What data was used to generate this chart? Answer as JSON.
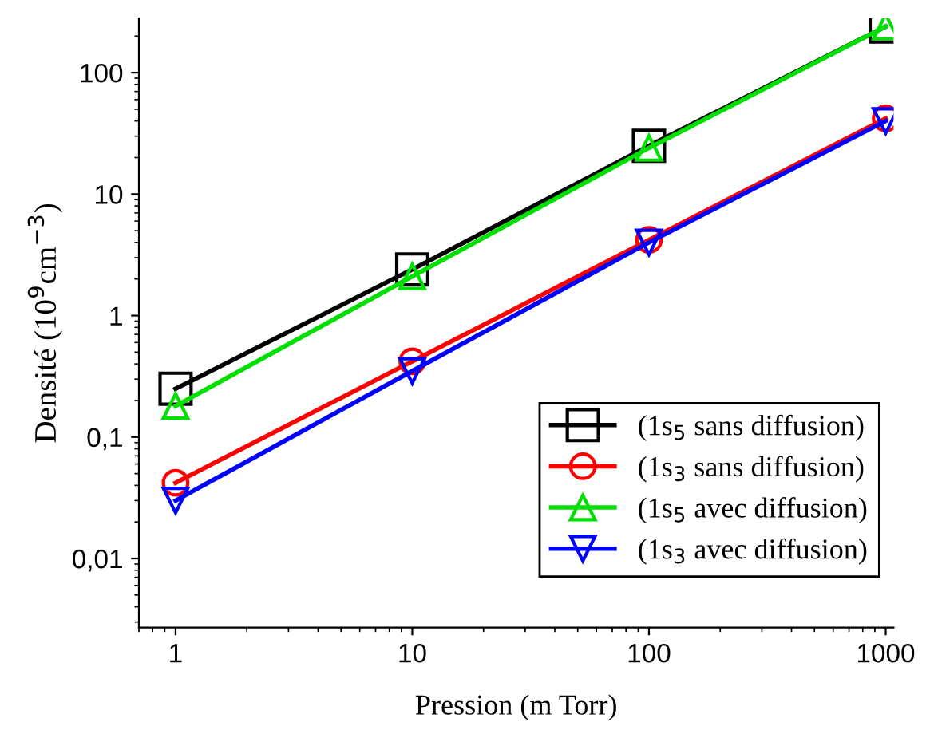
{
  "chart_data": {
    "type": "line",
    "xlabel": "Pression (m Torr)",
    "ylabel": "Densité (10$^{9}$cm$^{−3}$)",
    "x": [
      1,
      10,
      100,
      1000
    ],
    "log": "xy",
    "xlim": [
      0.7,
      1080
    ],
    "ylim": [
      0.0027,
      280
    ],
    "xticks": [
      1,
      10,
      100,
      1000
    ],
    "yticks": [
      {
        "value": 0.01,
        "label": "0,01"
      },
      {
        "value": 0.1,
        "label": "0,1"
      },
      1,
      10,
      100
    ],
    "grid": false,
    "legend": "bottom right",
    "line_style": "solid",
    "series": [
      {
        "name": "(1s$_{5}$ sans diffusion)",
        "color": "#000000",
        "marker": "square",
        "values": [
          0.25,
          2.4,
          25,
          240
        ]
      },
      {
        "name": "(1s$_{3}$ sans diffusion)",
        "color": "#ff0000",
        "marker": "circle",
        "values": [
          0.042,
          0.42,
          4.2,
          42
        ]
      },
      {
        "name": "(1s$_{5}$ avec diffusion)",
        "color": "#00e000",
        "marker": "triangle",
        "values": [
          0.18,
          2.1,
          24,
          240
        ]
      },
      {
        "name": "(1s$_{3}$ avec diffusion)",
        "color": "#0000ff",
        "marker": "triangle_down",
        "values": [
          0.03,
          0.35,
          4.0,
          40
        ]
      }
    ]
  }
}
